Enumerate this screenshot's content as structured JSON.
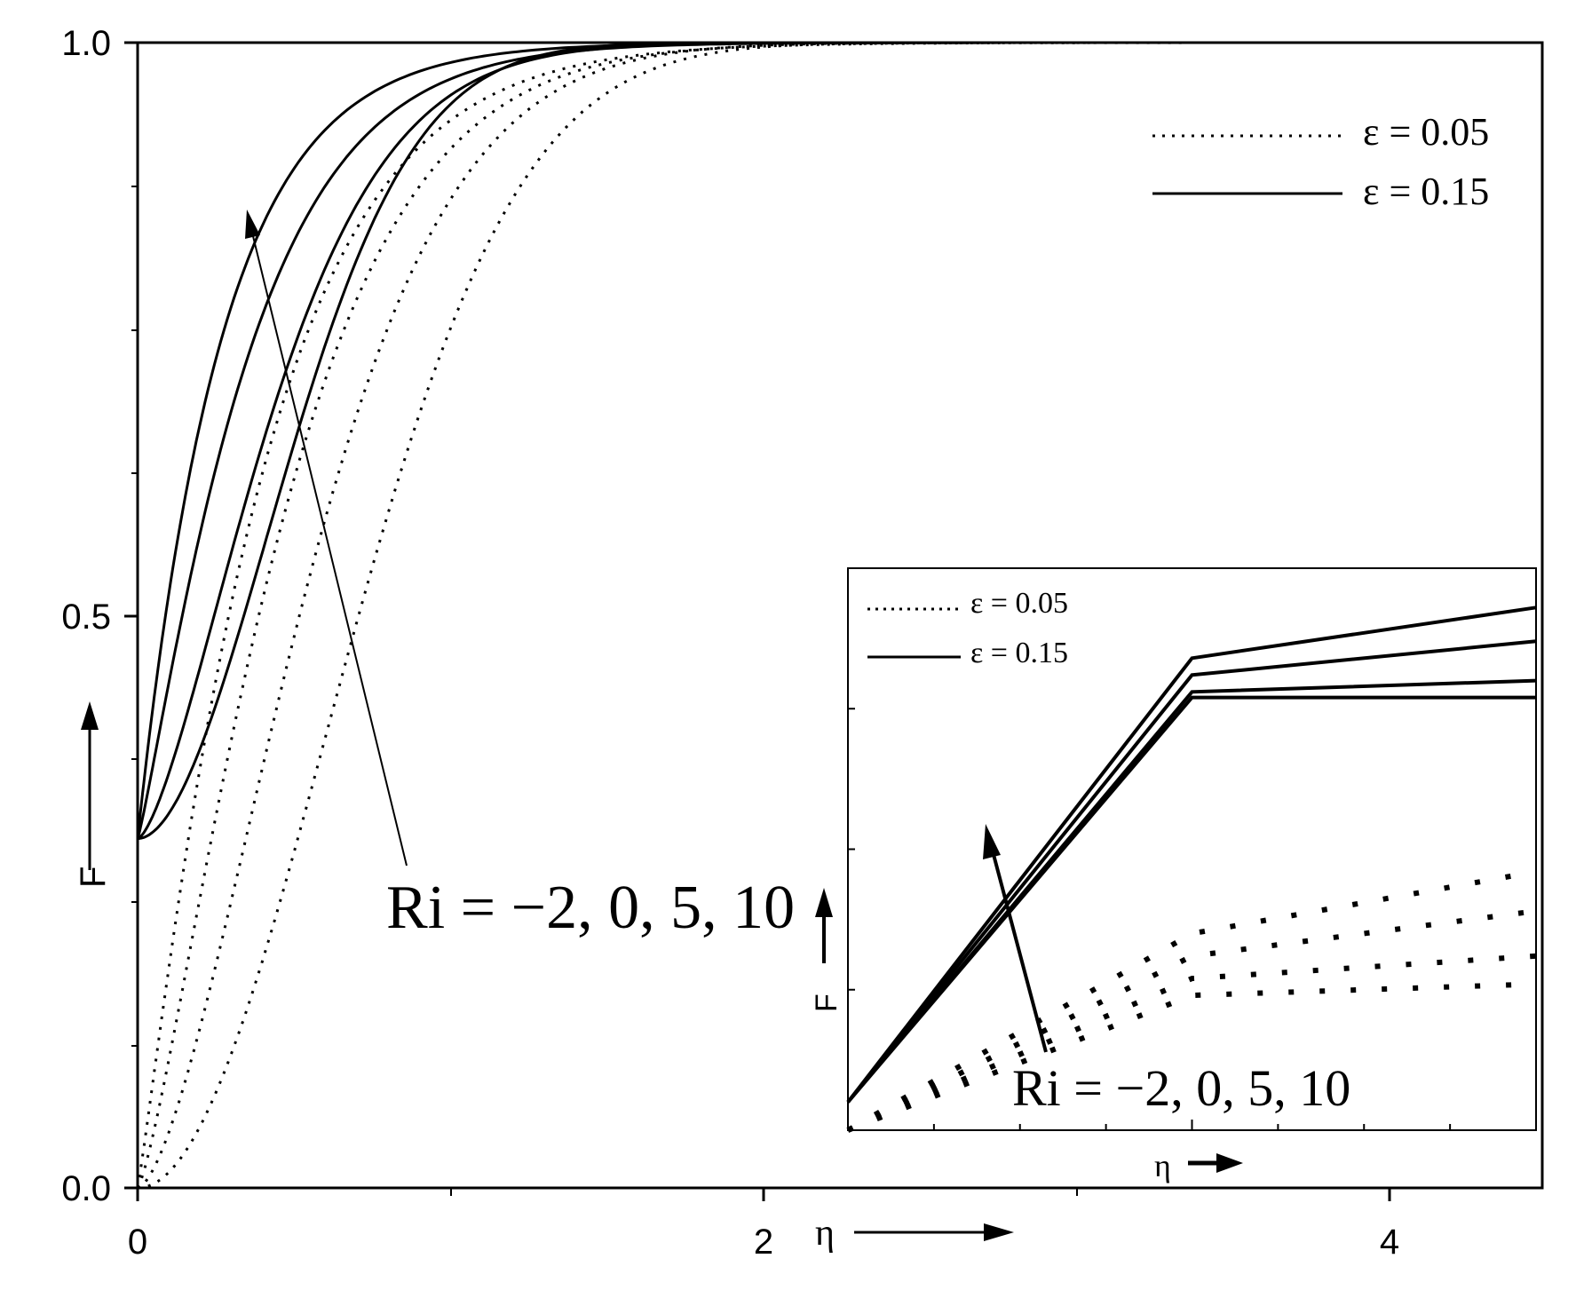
{
  "chart_data": [
    {
      "type": "line",
      "xlabel": "η",
      "ylabel": "F",
      "xlim": [
        0,
        4.6
      ],
      "ylim": [
        0,
        1.0
      ],
      "x_ticks": [
        "0",
        "2",
        "4"
      ],
      "y_ticks": [
        "0.0",
        "0.5",
        "1.0"
      ],
      "grid": false,
      "legend_position": "top-right",
      "legend": [
        {
          "label": "ε = 0.05",
          "style": "dotted"
        },
        {
          "label": "ε = 0.15",
          "style": "solid"
        }
      ],
      "annotation": "Ri = −2, 0, 5, 10",
      "series_params": {
        "solid": {
          "start": 0.305,
          "k": [
            3.6,
            2.6,
            1.9,
            1.6
          ],
          "p": [
            1.0,
            1.15,
            1.5,
            1.9
          ]
        },
        "dotted": {
          "start": 0.0,
          "k": [
            2.4,
            1.9,
            1.5,
            1.15
          ],
          "p": [
            1.1,
            1.3,
            1.6,
            2.0
          ]
        }
      }
    },
    {
      "type": "line",
      "inset": true,
      "xlabel": "η",
      "ylabel": "F",
      "legend": [
        {
          "label": "ε = 0.05",
          "style": "dotted"
        },
        {
          "label": "ε = 0.15",
          "style": "solid"
        }
      ],
      "annotation": "Ri = −2, 0, 5, 10",
      "solid_series": [
        {
          "x": [
            0,
            1,
            2
          ],
          "y": [
            0.05,
            0.84,
            0.93
          ]
        },
        {
          "x": [
            0,
            1,
            2
          ],
          "y": [
            0.05,
            0.81,
            0.87
          ]
        },
        {
          "x": [
            0,
            1,
            2
          ],
          "y": [
            0.05,
            0.78,
            0.8
          ]
        },
        {
          "x": [
            0,
            1,
            2
          ],
          "y": [
            0.05,
            0.77,
            0.77
          ]
        }
      ],
      "dotted_series": [
        {
          "x": [
            0,
            1,
            2
          ],
          "y": [
            0.0,
            0.35,
            0.46
          ]
        },
        {
          "x": [
            0,
            1,
            2
          ],
          "y": [
            0.0,
            0.31,
            0.39
          ]
        },
        {
          "x": [
            0,
            1,
            2
          ],
          "y": [
            0.0,
            0.27,
            0.31
          ]
        },
        {
          "x": [
            0,
            1,
            2
          ],
          "y": [
            0.0,
            0.24,
            0.26
          ]
        }
      ]
    }
  ]
}
